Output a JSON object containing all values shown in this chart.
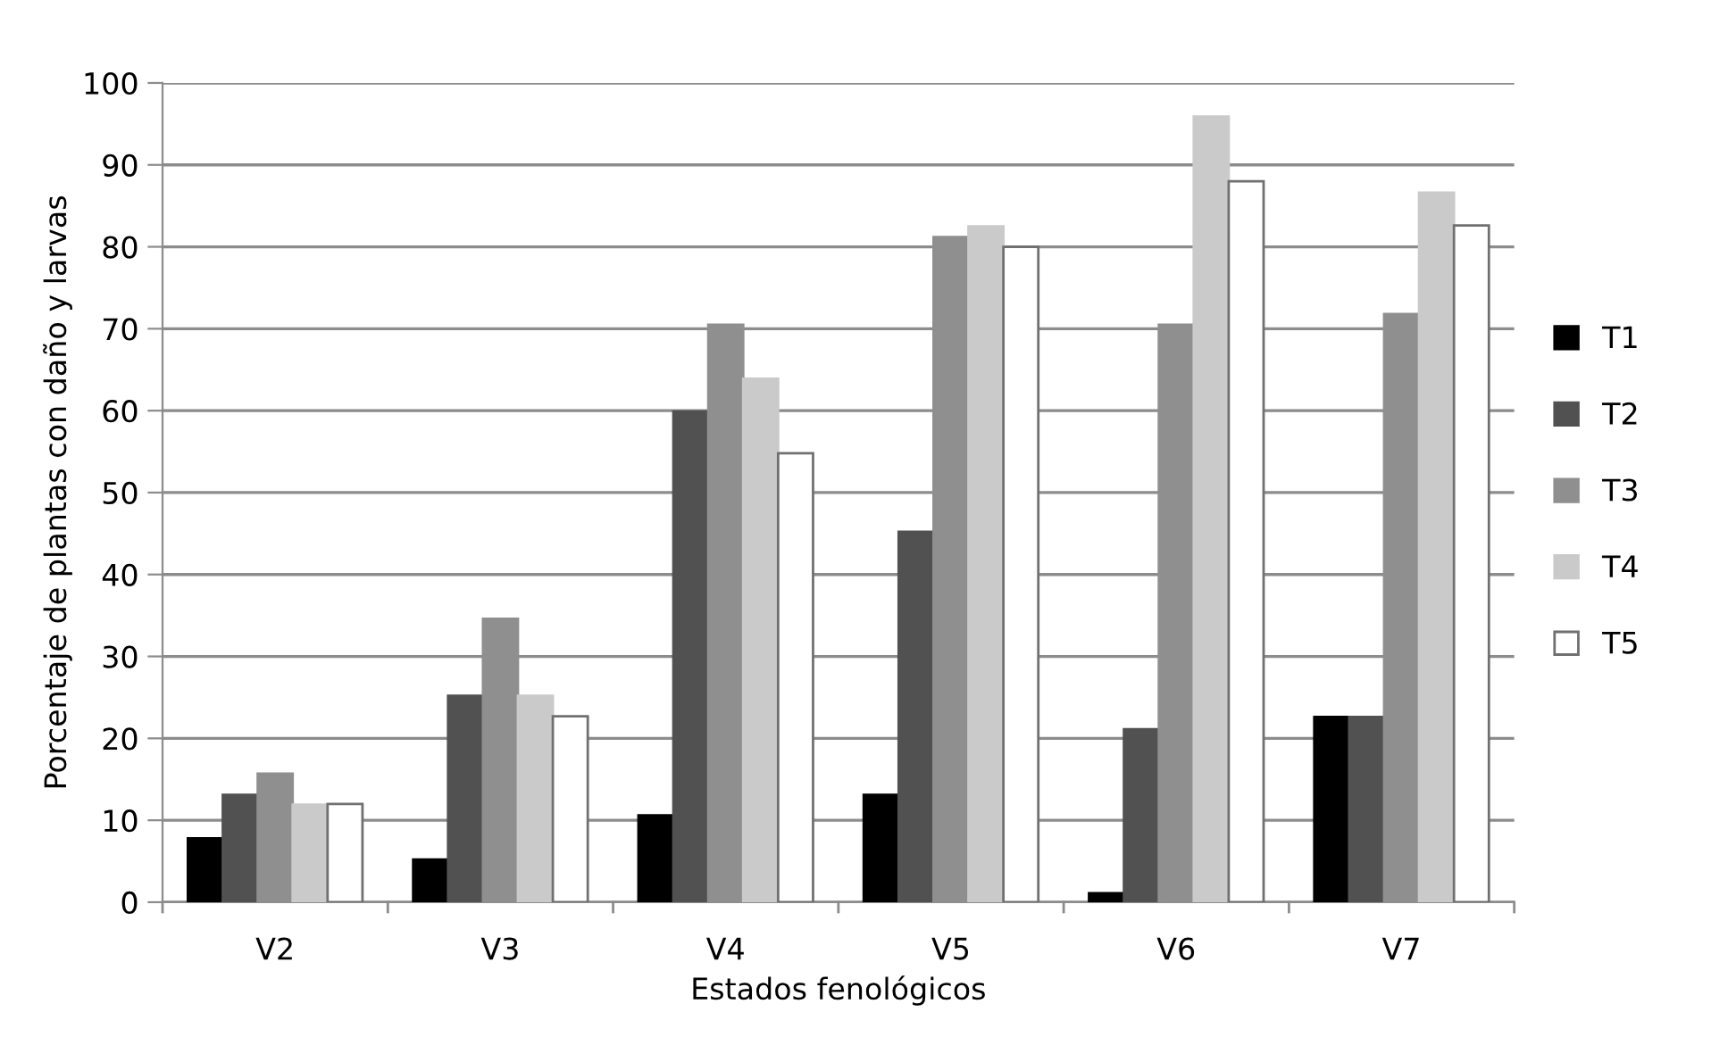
{
  "chart_data": {
    "type": "bar",
    "xlabel": "Estados fenológicos",
    "ylabel": "Porcentaje de plantas con daño y larvas",
    "categories": [
      "V2",
      "V3",
      "V4",
      "V5",
      "V6",
      "V7"
    ],
    "series": [
      {
        "name": "T1",
        "color": "#000000",
        "values": [
          7.8,
          5.2,
          10.6,
          13.1,
          1.1,
          22.6
        ]
      },
      {
        "name": "T2",
        "color": "#515151",
        "values": [
          13.1,
          25.2,
          59.9,
          45.2,
          21.1,
          22.6
        ]
      },
      {
        "name": "T3",
        "color": "#8f8f8f",
        "values": [
          15.7,
          34.6,
          70.5,
          81.2,
          70.5,
          71.8
        ]
      },
      {
        "name": "T4",
        "color": "#cacaca",
        "values": [
          11.9,
          25.2,
          63.9,
          82.5,
          95.9,
          86.6
        ]
      },
      {
        "name": "T5",
        "color": "#ffffff",
        "values": [
          12.0,
          22.7,
          54.8,
          80.0,
          88.0,
          82.6
        ]
      }
    ],
    "ylim": [
      0,
      100
    ],
    "yticks": [
      0,
      10,
      20,
      30,
      40,
      50,
      60,
      70,
      80,
      90,
      100
    ],
    "grid": "y",
    "legend": "right"
  }
}
